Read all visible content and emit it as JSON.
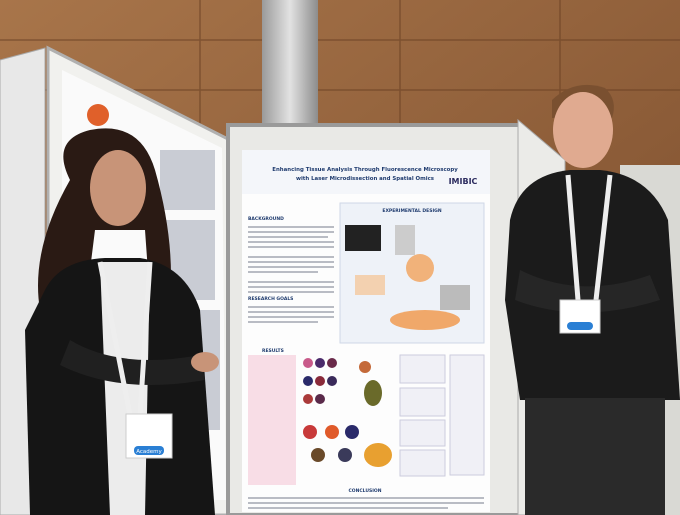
{
  "poster": {
    "title_line1": "Enhancing Tissue Analysis Through Fluorescence Microscopy",
    "title_line2": "with Laser Microdissection and Spatial Omics",
    "logo": "IMIBIC",
    "sections": [
      "BACKGROUND",
      "EXPERIMENTAL DESIGN",
      "RESEARCH GOALS",
      "RESULTS",
      "CONCLUSION"
    ]
  },
  "badge": {
    "label": "Academy"
  }
}
